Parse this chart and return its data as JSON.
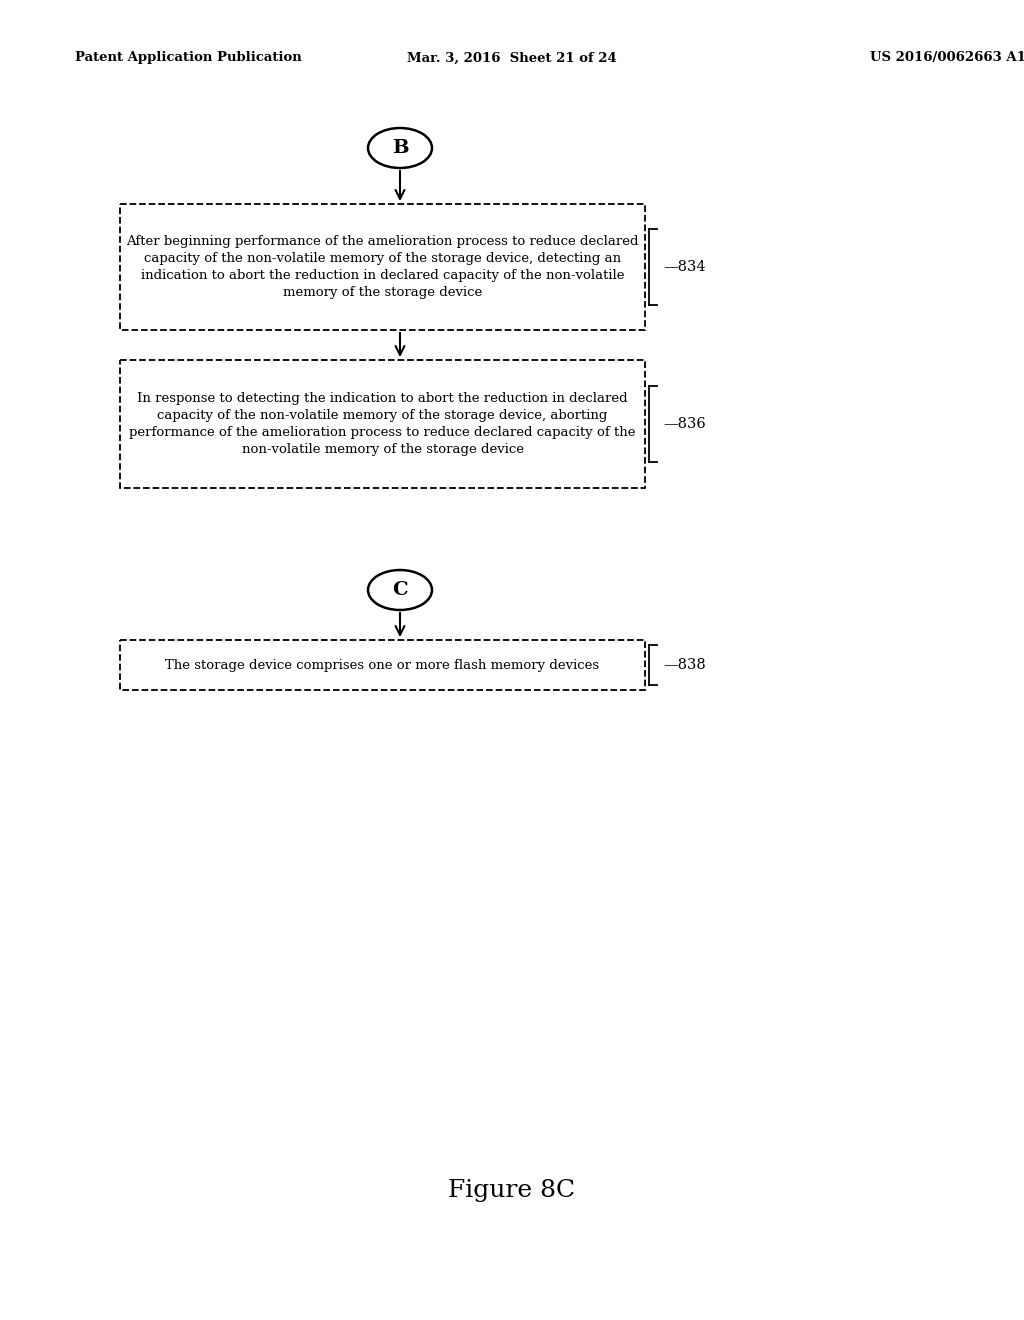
{
  "background_color": "#ffffff",
  "header_left": "Patent Application Publication",
  "header_mid": "Mar. 3, 2016  Sheet 21 of 24",
  "header_right": "US 2016/0062663 A1",
  "figure_label": "Figure 8C",
  "connector_B_label": "B",
  "connector_C_label": "C",
  "box834_text": "After beginning performance of the amelioration process to reduce declared\ncapacity of the non-volatile memory of the storage device, detecting an\nindication to abort the reduction in declared capacity of the non-volatile\nmemory of the storage device",
  "box834_label": "834",
  "box836_text": "In response to detecting the indication to abort the reduction in declared\ncapacity of the non-volatile memory of the storage device, aborting\nperformance of the amelioration process to reduce declared capacity of the\nnon-volatile memory of the storage device",
  "box836_label": "836",
  "box838_text": "The storage device comprises one or more flash memory devices",
  "box838_label": "838"
}
